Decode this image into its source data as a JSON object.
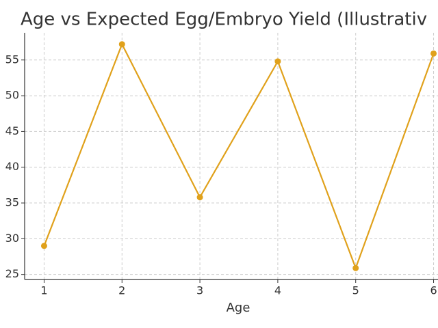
{
  "chart_data": {
    "type": "line",
    "title": "Age vs Expected Egg/Embryo Yield (Illustrativ",
    "x_label": "Age",
    "x": [
      1,
      2,
      3,
      4,
      5,
      6
    ],
    "series": [
      {
        "color": "#e0a11b",
        "values": [
          29,
          57.2,
          35.8,
          54.8,
          25.9,
          55.9
        ]
      }
    ],
    "xlim": [
      0.75,
      6.25
    ],
    "xticks": [
      1,
      2,
      3,
      4,
      5,
      6
    ],
    "ylim": [
      24.3,
      58.8
    ],
    "yticks": [
      25,
      30,
      35,
      40,
      45,
      50,
      55
    ],
    "grid": true
  }
}
